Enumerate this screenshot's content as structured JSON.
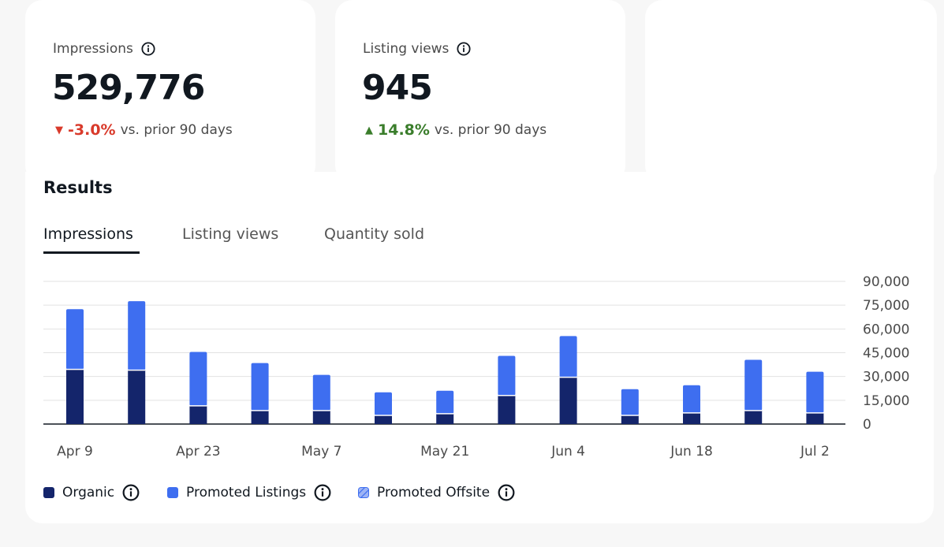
{
  "cards": [
    {
      "label": "Impressions",
      "value": "529,776",
      "delta": "-3.0%",
      "delta_dir": "down",
      "delta_suffix": "vs. prior 90 days",
      "delta_color": "#d93a2b"
    },
    {
      "label": "Listing views",
      "value": "945",
      "delta": "14.8%",
      "delta_dir": "up",
      "delta_suffix": "vs. prior 90 days",
      "delta_color": "#3a7d2b"
    }
  ],
  "results": {
    "title": "Results",
    "tabs": [
      "Impressions",
      "Listing views",
      "Quantity sold"
    ],
    "active_tab": "Impressions"
  },
  "legend": [
    {
      "label": "Organic",
      "color": "#14256b"
    },
    {
      "label": "Promoted Listings",
      "color": "#3e6ef0"
    },
    {
      "label": "Promoted Offsite",
      "color": "#9db4f5"
    }
  ],
  "chart_data": {
    "type": "bar",
    "stacked": true,
    "x_tick_labels": [
      "Apr 9",
      "Apr 23",
      "May 7",
      "May 21",
      "Jun 4",
      "Jun 18",
      "Jul 2"
    ],
    "y_ticks": [
      "90,000",
      "75,000",
      "60,000",
      "45,000",
      "30,000",
      "15,000",
      "0"
    ],
    "ylim": [
      0,
      90000
    ],
    "grid": true,
    "series": [
      {
        "name": "Organic",
        "color": "#14256b",
        "values": [
          34500,
          34000,
          11500,
          8500,
          8500,
          5500,
          6500,
          18000,
          29500,
          5500,
          7000,
          8500,
          7000
        ]
      },
      {
        "name": "Promoted Listings",
        "color": "#3e6ef0",
        "values": [
          38000,
          43500,
          34000,
          30000,
          22500,
          14500,
          14500,
          25000,
          26000,
          16500,
          17500,
          32000,
          26000
        ]
      },
      {
        "name": "Promoted Offsite",
        "color": "#9db4f5",
        "values": [
          0,
          0,
          0,
          0,
          0,
          0,
          0,
          0,
          0,
          0,
          0,
          0,
          0
        ]
      }
    ]
  }
}
